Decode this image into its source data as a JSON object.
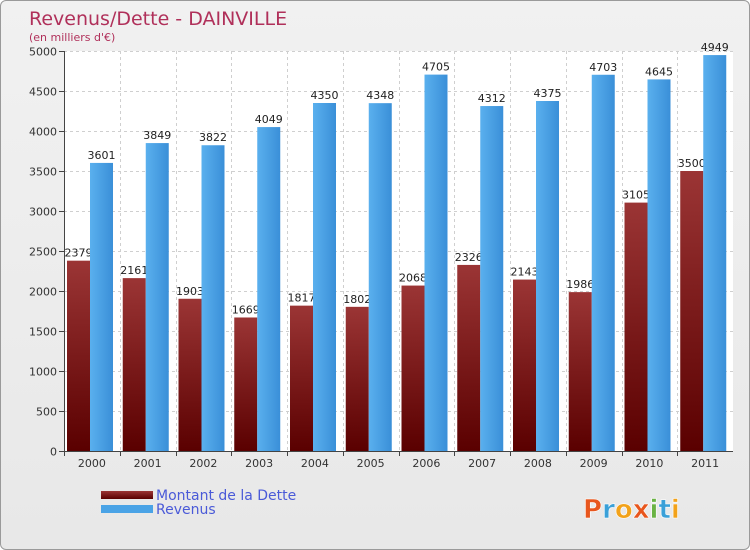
{
  "chart_data": {
    "type": "bar",
    "title": "Revenus/Dette - DAINVILLE",
    "subtitle": "(en milliers d'€)",
    "categories": [
      "2000",
      "2001",
      "2002",
      "2003",
      "2004",
      "2005",
      "2006",
      "2007",
      "2008",
      "2009",
      "2010",
      "2011"
    ],
    "series": [
      {
        "name": "Montant de la Dette",
        "color": "#8a1c1c",
        "values": [
          2379,
          2161,
          1903,
          1669,
          1817,
          1802,
          2068,
          2326,
          2143,
          1986,
          3105,
          3500
        ]
      },
      {
        "name": "Revenus",
        "color": "#4aa3e6",
        "values": [
          3601,
          3849,
          3822,
          4049,
          4350,
          4348,
          4705,
          4312,
          4375,
          4703,
          4645,
          4949
        ]
      }
    ],
    "yticks": [
      "0",
      "500",
      "1000",
      "1500",
      "2000",
      "2500",
      "3000",
      "3500",
      "4000",
      "4500",
      "5000"
    ],
    "ylim": [
      0,
      5000
    ],
    "grid": true,
    "legend_position": "bottom-left"
  },
  "logo": {
    "letters": [
      "P",
      "r",
      "o",
      "x",
      "i",
      "t",
      "i"
    ],
    "colors": [
      "#e8561d",
      "#3aa0d8",
      "#f2a21a",
      "#e8561d",
      "#6ab344",
      "#3aa0d8",
      "#f2a21a"
    ]
  }
}
